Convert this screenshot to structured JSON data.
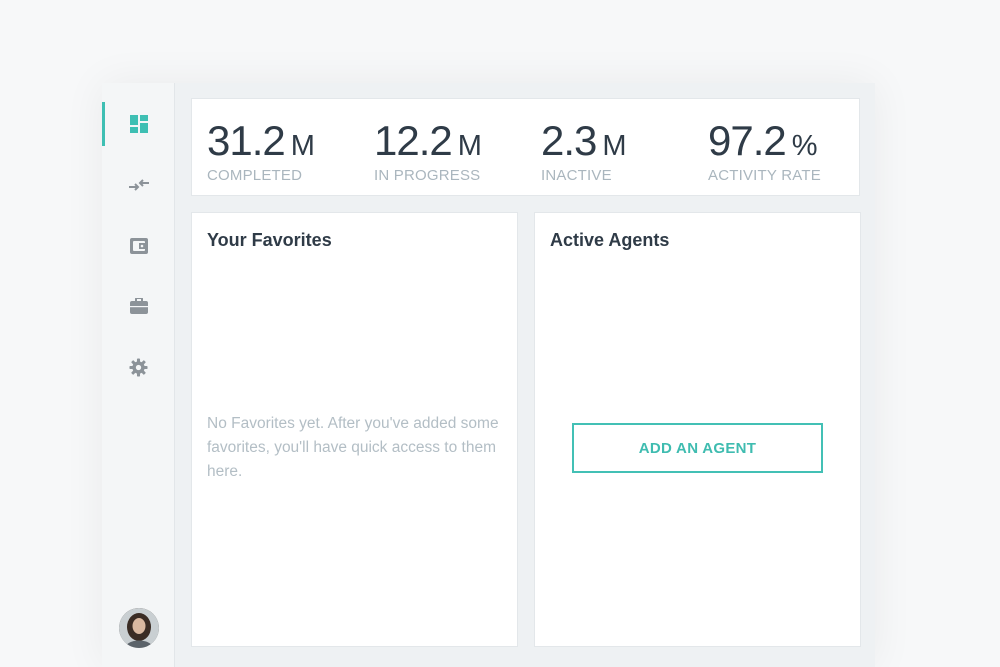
{
  "sidebar": {
    "items": [
      {
        "icon": "dashboard-icon",
        "active": true
      },
      {
        "icon": "transfer-arrows-icon",
        "active": false
      },
      {
        "icon": "wallet-icon",
        "active": false
      },
      {
        "icon": "briefcase-icon",
        "active": false
      },
      {
        "icon": "gear-icon",
        "active": false
      }
    ],
    "accent_color": "#3ebfb3",
    "avatar": "user-avatar"
  },
  "stats": [
    {
      "value": "31.2",
      "unit": "M",
      "label": "COMPLETED"
    },
    {
      "value": "12.2",
      "unit": "M",
      "label": "IN PROGRESS"
    },
    {
      "value": "2.3",
      "unit": "M",
      "label": "INACTIVE"
    },
    {
      "value": "97.2",
      "unit": "%",
      "label": "ACTIVITY RATE"
    }
  ],
  "favorites": {
    "title": "Your Favorites",
    "empty_message": "No Favorites yet. After you've added some favorites, you'll have quick access to them here."
  },
  "agents": {
    "title": "Active Agents",
    "add_button_label": "ADD AN AGENT"
  }
}
